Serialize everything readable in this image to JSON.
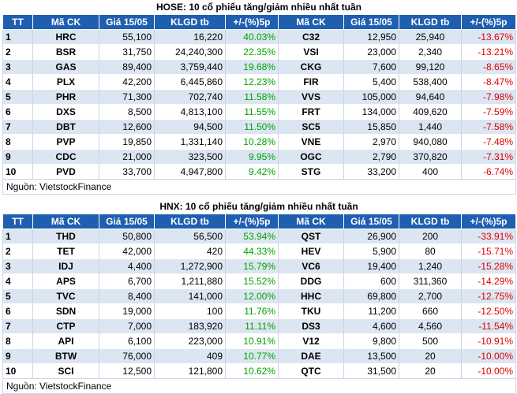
{
  "hose": {
    "title": "HOSE: 10 cổ phiếu tăng/giảm nhiều nhất tuần",
    "headers": [
      "TT",
      "Mã CK",
      "Giá 15/05",
      "KLGD tb",
      "+/-(%)5p",
      "Mã CK",
      "Giá 15/05",
      "KLGD tb",
      "+/-(%)5p"
    ],
    "rows": [
      {
        "tt": "1",
        "up_code": "HRC",
        "up_price": "55,100",
        "up_vol": "16,220",
        "up_pct": "40.03%",
        "dn_code": "C32",
        "dn_price": "12,950",
        "dn_vol": "25,940",
        "dn_pct": "-13.67%"
      },
      {
        "tt": "2",
        "up_code": "BSR",
        "up_price": "31,750",
        "up_vol": "24,240,300",
        "up_pct": "22.35%",
        "dn_code": "VSI",
        "dn_price": "23,000",
        "dn_vol": "2,340",
        "dn_pct": "-13.21%"
      },
      {
        "tt": "3",
        "up_code": "GAS",
        "up_price": "89,400",
        "up_vol": "3,759,440",
        "up_pct": "19.68%",
        "dn_code": "CKG",
        "dn_price": "7,600",
        "dn_vol": "99,120",
        "dn_pct": "-8.65%"
      },
      {
        "tt": "4",
        "up_code": "PLX",
        "up_price": "42,200",
        "up_vol": "6,445,860",
        "up_pct": "12.23%",
        "dn_code": "FIR",
        "dn_price": "5,400",
        "dn_vol": "538,400",
        "dn_pct": "-8.47%"
      },
      {
        "tt": "5",
        "up_code": "PHR",
        "up_price": "71,300",
        "up_vol": "702,740",
        "up_pct": "11.58%",
        "dn_code": "VVS",
        "dn_price": "105,000",
        "dn_vol": "94,640",
        "dn_pct": "-7.98%"
      },
      {
        "tt": "6",
        "up_code": "DXS",
        "up_price": "8,500",
        "up_vol": "4,813,100",
        "up_pct": "11.55%",
        "dn_code": "FRT",
        "dn_price": "134,000",
        "dn_vol": "409,620",
        "dn_pct": "-7.59%"
      },
      {
        "tt": "7",
        "up_code": "DBT",
        "up_price": "12,600",
        "up_vol": "94,500",
        "up_pct": "11.50%",
        "dn_code": "SC5",
        "dn_price": "15,850",
        "dn_vol": "1,440",
        "dn_pct": "-7.58%"
      },
      {
        "tt": "8",
        "up_code": "PVP",
        "up_price": "19,850",
        "up_vol": "1,331,140",
        "up_pct": "10.28%",
        "dn_code": "VNE",
        "dn_price": "2,970",
        "dn_vol": "940,080",
        "dn_pct": "-7.48%"
      },
      {
        "tt": "9",
        "up_code": "CDC",
        "up_price": "21,000",
        "up_vol": "323,500",
        "up_pct": "9.95%",
        "dn_code": "OGC",
        "dn_price": "2,790",
        "dn_vol": "370,820",
        "dn_pct": "-7.31%"
      },
      {
        "tt": "10",
        "up_code": "PVD",
        "up_price": "33,700",
        "up_vol": "4,947,800",
        "up_pct": "9.42%",
        "dn_code": "STG",
        "dn_price": "33,200",
        "dn_vol": "400",
        "dn_pct": "-6.74%"
      }
    ],
    "source": "Nguồn: VietstockFinance"
  },
  "hnx": {
    "title": "HNX: 10 cổ phiếu tăng/giảm nhiều nhất tuần",
    "headers": [
      "TT",
      "Mã CK",
      "Giá 15/05",
      "KLGD tb",
      "+/-(%)5p",
      "Mã CK",
      "Giá 15/05",
      "KLGD tb",
      "+/-(%)5p"
    ],
    "rows": [
      {
        "tt": "1",
        "up_code": "THD",
        "up_price": "50,800",
        "up_vol": "56,500",
        "up_pct": "53.94%",
        "dn_code": "QST",
        "dn_price": "26,900",
        "dn_vol": "200",
        "dn_pct": "-33.91%"
      },
      {
        "tt": "2",
        "up_code": "TET",
        "up_price": "42,000",
        "up_vol": "420",
        "up_pct": "44.33%",
        "dn_code": "HEV",
        "dn_price": "5,900",
        "dn_vol": "80",
        "dn_pct": "-15.71%"
      },
      {
        "tt": "3",
        "up_code": "IDJ",
        "up_price": "4,400",
        "up_vol": "1,272,900",
        "up_pct": "15.79%",
        "dn_code": "VC6",
        "dn_price": "19,400",
        "dn_vol": "1,240",
        "dn_pct": "-15.28%"
      },
      {
        "tt": "4",
        "up_code": "APS",
        "up_price": "6,700",
        "up_vol": "1,211,880",
        "up_pct": "15.52%",
        "dn_code": "DDG",
        "dn_price": "600",
        "dn_vol": "311,360",
        "dn_pct": "-14.29%"
      },
      {
        "tt": "5",
        "up_code": "TVC",
        "up_price": "8,400",
        "up_vol": "141,000",
        "up_pct": "12.00%",
        "dn_code": "HHC",
        "dn_price": "69,800",
        "dn_vol": "2,700",
        "dn_pct": "-12.75%"
      },
      {
        "tt": "6",
        "up_code": "SDN",
        "up_price": "19,000",
        "up_vol": "100",
        "up_pct": "11.76%",
        "dn_code": "TKU",
        "dn_price": "11,200",
        "dn_vol": "660",
        "dn_pct": "-12.50%"
      },
      {
        "tt": "7",
        "up_code": "CTP",
        "up_price": "7,000",
        "up_vol": "183,920",
        "up_pct": "11.11%",
        "dn_code": "DS3",
        "dn_price": "4,600",
        "dn_vol": "4,560",
        "dn_pct": "-11.54%"
      },
      {
        "tt": "8",
        "up_code": "API",
        "up_price": "6,100",
        "up_vol": "223,000",
        "up_pct": "10.91%",
        "dn_code": "V12",
        "dn_price": "9,800",
        "dn_vol": "500",
        "dn_pct": "-10.91%"
      },
      {
        "tt": "9",
        "up_code": "BTW",
        "up_price": "76,000",
        "up_vol": "409",
        "up_pct": "10.77%",
        "dn_code": "DAE",
        "dn_price": "13,500",
        "dn_vol": "20",
        "dn_pct": "-10.00%"
      },
      {
        "tt": "10",
        "up_code": "SCI",
        "up_price": "12,500",
        "up_vol": "121,800",
        "up_pct": "10.62%",
        "dn_code": "QTC",
        "dn_price": "31,500",
        "dn_vol": "20",
        "dn_pct": "-10.00%"
      }
    ],
    "source": "Nguồn: VietstockFinance"
  },
  "colors": {
    "header_bg": "#1f5fb0",
    "stripe": "#dce6f2",
    "up": "#00a300",
    "down": "#e00000"
  }
}
